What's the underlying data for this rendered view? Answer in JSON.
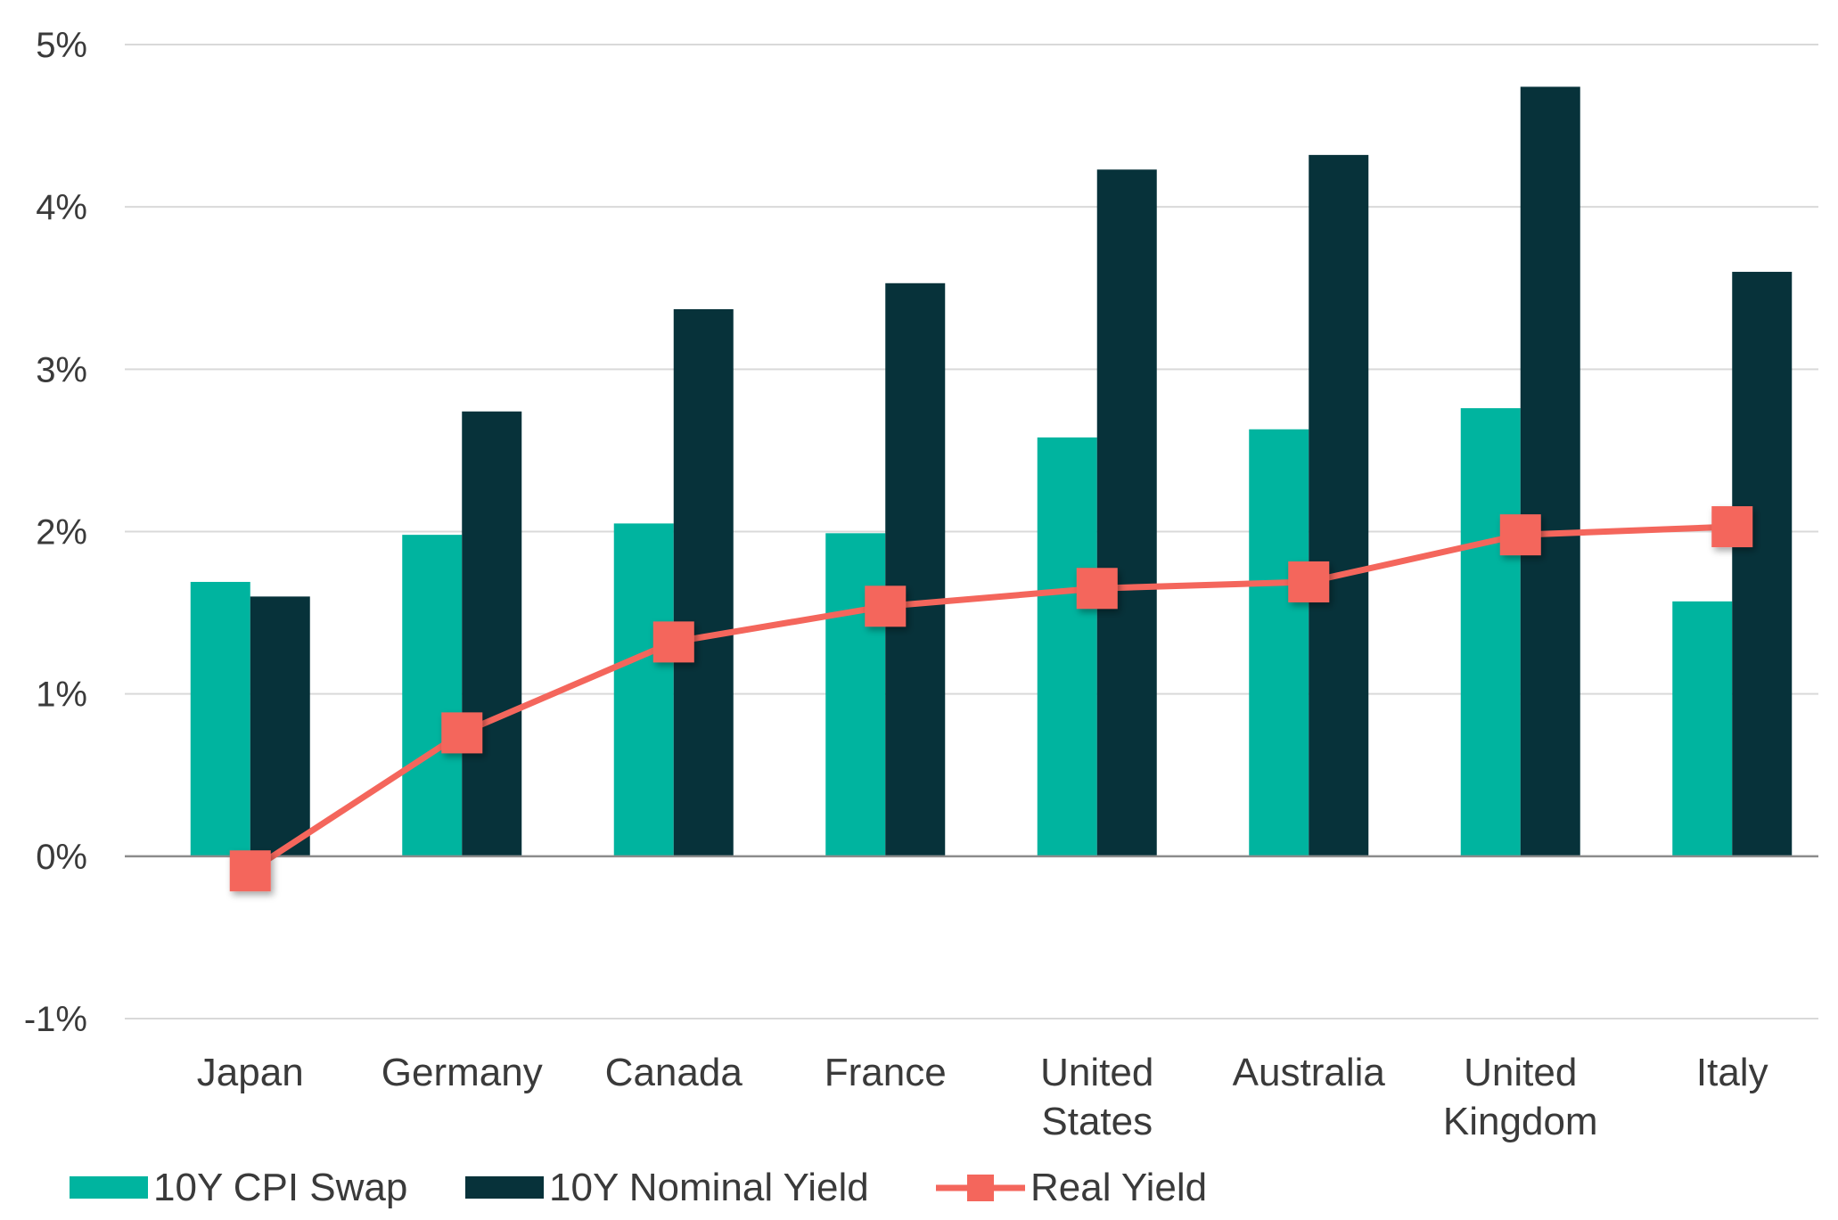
{
  "chart_data": {
    "type": "bar",
    "categories": [
      [
        "Japan"
      ],
      [
        "Germany"
      ],
      [
        "Canada"
      ],
      [
        "France"
      ],
      [
        "United",
        "States"
      ],
      [
        "Australia"
      ],
      [
        "United",
        "Kingdom"
      ],
      [
        "Italy"
      ]
    ],
    "series": [
      {
        "name": "10Y CPI Swap",
        "type": "bar",
        "color": "#00b49f",
        "values": [
          1.69,
          1.98,
          2.05,
          1.99,
          2.58,
          2.63,
          2.76,
          1.57
        ]
      },
      {
        "name": "10Y Nominal Yield",
        "type": "bar",
        "color": "#07323a",
        "values": [
          1.6,
          2.74,
          3.37,
          3.53,
          4.23,
          4.32,
          4.74,
          3.6
        ]
      },
      {
        "name": "Real Yield",
        "type": "line",
        "marker": "square",
        "color": "#f4665c",
        "values": [
          -0.09,
          0.76,
          1.32,
          1.54,
          1.65,
          1.69,
          1.98,
          2.03
        ]
      }
    ],
    "yticks": [
      "-1%",
      "0%",
      "1%",
      "2%",
      "3%",
      "4%",
      "5%"
    ],
    "ytick_values": [
      -1,
      0,
      1,
      2,
      3,
      4,
      5
    ],
    "ylim": [
      -1,
      5
    ],
    "grid": true,
    "legend": "bottom-left"
  }
}
